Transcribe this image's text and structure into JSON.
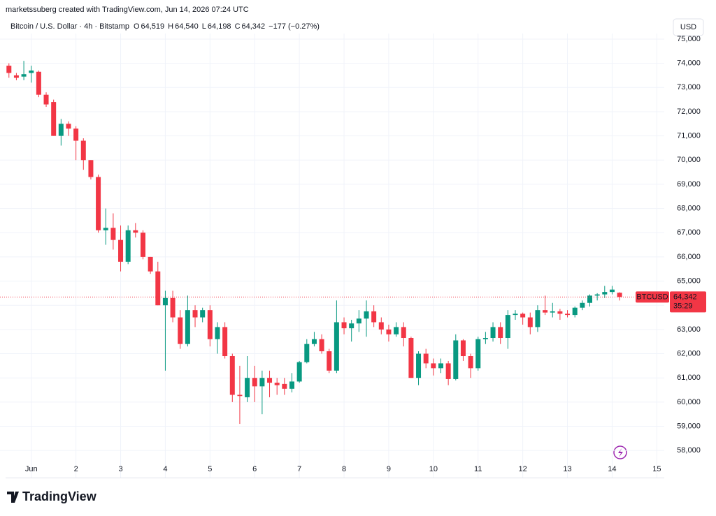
{
  "header": {
    "credit": "marketssuberg created with TradingView.com, Jun 14, 2026 07:24 UTC",
    "currency_button": "USD",
    "logo": "TradingView"
  },
  "chart_data": {
    "type": "candlestick",
    "title": "Bitcoin / U.S. Dollar · 4h · Bitstamp",
    "ohlc_legend": [
      [
        "O",
        "64,519"
      ],
      [
        "H",
        "64,540"
      ],
      [
        "L",
        "64,198"
      ],
      [
        "C",
        "64,342"
      ]
    ],
    "change_label": "−177 (−0.27%)",
    "symbol_label": "BTCUSD",
    "last_price": {
      "value": 64342,
      "label": "64,342"
    },
    "countdown": "35:29",
    "up_color": "#089981",
    "down_color": "#f23645",
    "grid": true,
    "ylim": [
      56880,
      75230
    ],
    "yticks": [
      {
        "value": 58000,
        "label": "58,000"
      },
      {
        "value": 59000,
        "label": "59,000"
      },
      {
        "value": 60000,
        "label": "60,000"
      },
      {
        "value": 61000,
        "label": "61,000"
      },
      {
        "value": 62000,
        "label": "62,000"
      },
      {
        "value": 63000,
        "label": "63,000"
      },
      {
        "value": 64000,
        "label": "64,000"
      },
      {
        "value": 65000,
        "label": "65,000"
      },
      {
        "value": 66000,
        "label": "66,000"
      },
      {
        "value": 67000,
        "label": "67,000"
      },
      {
        "value": 68000,
        "label": "68,000"
      },
      {
        "value": 69000,
        "label": "69,000"
      },
      {
        "value": 70000,
        "label": "70,000"
      },
      {
        "value": 71000,
        "label": "71,000"
      },
      {
        "value": 72000,
        "label": "72,000"
      },
      {
        "value": 73000,
        "label": "73,000"
      },
      {
        "value": 74000,
        "label": "74,000"
      },
      {
        "value": 75000,
        "label": "75,000"
      }
    ],
    "xlim": [
      -1.2,
      88
    ],
    "xticks": [
      {
        "value": 3,
        "label": "Jun"
      },
      {
        "value": 9,
        "label": "2"
      },
      {
        "value": 15,
        "label": "3"
      },
      {
        "value": 21,
        "label": "4"
      },
      {
        "value": 27,
        "label": "5"
      },
      {
        "value": 33,
        "label": "6"
      },
      {
        "value": 39,
        "label": "7"
      },
      {
        "value": 45,
        "label": "8"
      },
      {
        "value": 51,
        "label": "9"
      },
      {
        "value": 57,
        "label": "10"
      },
      {
        "value": 63,
        "label": "11"
      },
      {
        "value": 69,
        "label": "12"
      },
      {
        "value": 75,
        "label": "13"
      },
      {
        "value": 81,
        "label": "14"
      },
      {
        "value": 87,
        "label": "15"
      }
    ],
    "open": [
      73900,
      73500,
      73450,
      73600,
      73650,
      72700,
      72400,
      71000,
      71500,
      71300,
      70800,
      70000,
      69300,
      67100,
      67200,
      66700,
      65800,
      67100,
      67000,
      66000,
      65400,
      64000,
      64300,
      63500,
      62400,
      63800,
      63500,
      63800,
      62600,
      63100,
      61900,
      60300,
      60200,
      61000,
      60650,
      61000,
      60800,
      60750,
      60550,
      60850,
      61650,
      62400,
      62600,
      62100,
      61300,
      63300,
      63050,
      63250,
      63450,
      63750,
      63300,
      63000,
      62800,
      63100,
      62650,
      61000,
      62000,
      61600,
      61400,
      61600,
      60950,
      62550,
      61900,
      61400,
      62600,
      62650,
      63100,
      62650,
      63600,
      63650,
      63500,
      63100,
      63800,
      63700,
      63750,
      63650,
      63600,
      63900,
      64100,
      64400,
      64450,
      64550,
      64519
    ],
    "high": [
      74000,
      73600,
      74100,
      73900,
      73700,
      72800,
      72500,
      71700,
      71600,
      71400,
      70900,
      70000,
      69400,
      68000,
      67800,
      67300,
      67300,
      67400,
      67100,
      66000,
      65800,
      64600,
      64600,
      63800,
      64400,
      64000,
      63900,
      64000,
      63300,
      63300,
      62000,
      61500,
      61900,
      61500,
      61300,
      61300,
      61000,
      61000,
      61200,
      61700,
      62600,
      62900,
      62800,
      62200,
      64200,
      63500,
      63400,
      63800,
      64200,
      64000,
      63500,
      63200,
      63300,
      63300,
      62700,
      62100,
      62200,
      61800,
      61800,
      61700,
      62800,
      62600,
      62000,
      62700,
      62900,
      63300,
      63300,
      63800,
      63800,
      63700,
      63700,
      64000,
      64400,
      64100,
      63850,
      63800,
      63950,
      64200,
      64450,
      64500,
      64800,
      64800,
      64540
    ],
    "low": [
      73400,
      73300,
      73300,
      73200,
      72600,
      72200,
      71000,
      70600,
      71000,
      70000,
      69600,
      69200,
      67000,
      66500,
      66300,
      65400,
      65700,
      66800,
      65900,
      65300,
      64000,
      61300,
      63300,
      62200,
      62300,
      63100,
      63300,
      62300,
      62000,
      61800,
      60000,
      59100,
      60000,
      60000,
      59500,
      60200,
      60300,
      60300,
      60400,
      60800,
      61600,
      62300,
      62000,
      61200,
      61200,
      62800,
      62500,
      62900,
      62700,
      63100,
      62800,
      62500,
      62700,
      62300,
      61000,
      60700,
      61400,
      61100,
      61200,
      60700,
      60900,
      61700,
      61000,
      61300,
      62400,
      62500,
      62400,
      62200,
      63400,
      63200,
      62800,
      62900,
      63600,
      63500,
      63400,
      63500,
      63500,
      63800,
      63950,
      64200,
      64300,
      64450,
      64198
    ],
    "close": [
      73600,
      73400,
      73550,
      73700,
      72700,
      72300,
      71000,
      71500,
      71300,
      70800,
      70000,
      69300,
      67100,
      67200,
      66700,
      65800,
      67100,
      67000,
      66000,
      65400,
      64000,
      64300,
      63500,
      62400,
      63800,
      63500,
      63800,
      62600,
      63100,
      61900,
      60300,
      60250,
      61000,
      60650,
      61000,
      60800,
      60700,
      60550,
      60850,
      61650,
      62400,
      62600,
      62100,
      61300,
      63300,
      63050,
      63250,
      63450,
      63750,
      63300,
      63000,
      62800,
      63100,
      62650,
      61000,
      62000,
      61600,
      61400,
      61600,
      60950,
      62550,
      61900,
      61400,
      62600,
      62650,
      63100,
      62650,
      63600,
      63650,
      63500,
      63100,
      63800,
      63700,
      63750,
      63650,
      63600,
      63900,
      64100,
      64400,
      64450,
      64550,
      64650,
      64342
    ]
  }
}
